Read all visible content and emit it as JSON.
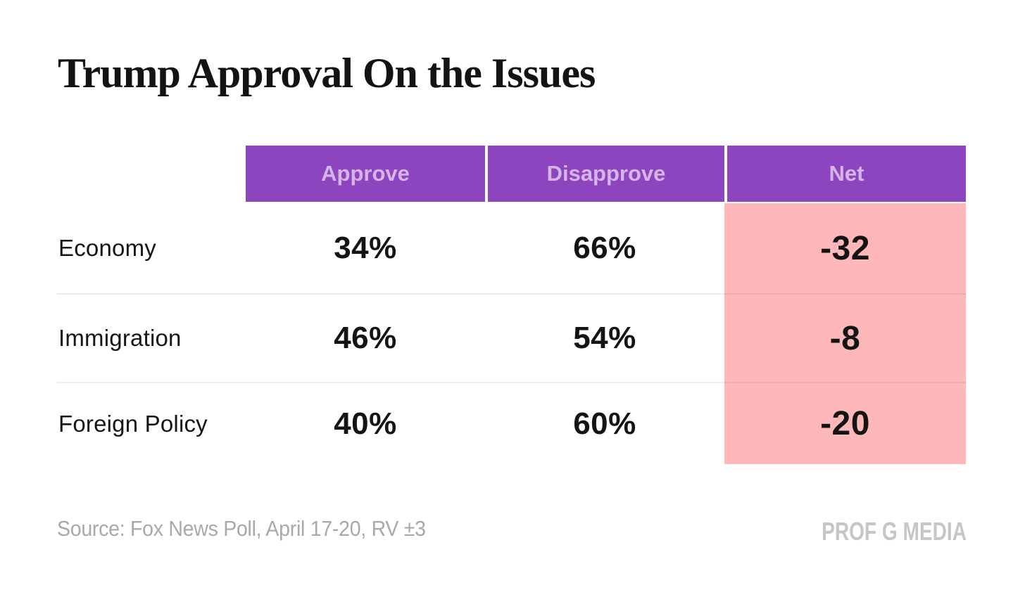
{
  "title": "Trump Approval On the Issues",
  "table": {
    "columns": {
      "approve": "Approve",
      "disapprove": "Disapprove",
      "net": "Net"
    },
    "rows": [
      {
        "label": "Economy",
        "approve": "34%",
        "disapprove": "66%",
        "net": "-32"
      },
      {
        "label": "Immigration",
        "approve": "46%",
        "disapprove": "54%",
        "net": "-8"
      },
      {
        "label": "Foreign Policy",
        "approve": "40%",
        "disapprove": "60%",
        "net": "-20"
      }
    ]
  },
  "footer": {
    "source": "Source: Fox News Poll, April 17-20, RV ±3",
    "brand": "PROF G MEDIA"
  },
  "colors": {
    "header_bg": "#8C45BF",
    "header_text": "#D5B5E6",
    "net_bg": "#FFB8BA",
    "value_text": "#141414",
    "source_text": "#A9A9A9",
    "brand_text": "#C6C6C6"
  },
  "chart_data": {
    "type": "table",
    "title": "Trump Approval On the Issues",
    "categories": [
      "Economy",
      "Immigration",
      "Foreign Policy"
    ],
    "series": [
      {
        "name": "Approve",
        "values": [
          34,
          46,
          40
        ]
      },
      {
        "name": "Disapprove",
        "values": [
          66,
          54,
          60
        ]
      },
      {
        "name": "Net",
        "values": [
          -32,
          -8,
          -20
        ]
      }
    ],
    "value_unit": "percent (Net shown as point difference)",
    "source": "Source: Fox News Poll, April 17-20, RV ±3",
    "notes": "Net column highlighted pink; header row purple; all net values negative"
  }
}
